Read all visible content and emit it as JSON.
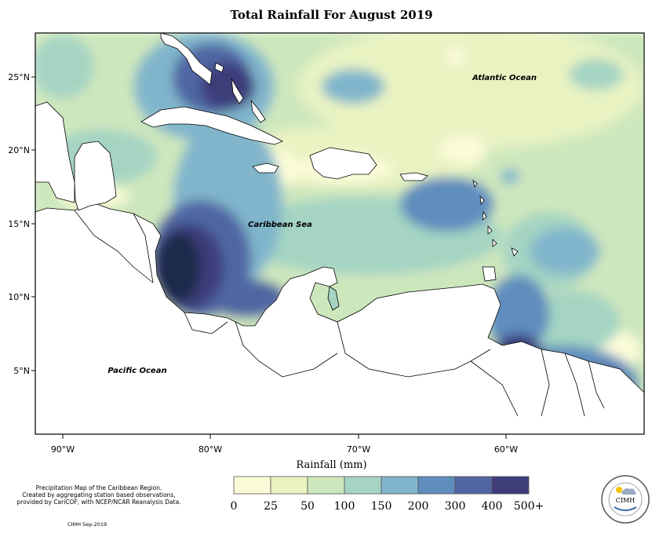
{
  "title": "Total Rainfall For August 2019",
  "map": {
    "lon_range": [
      -92,
      -51
    ],
    "lat_range": [
      1,
      28
    ],
    "longitude_ticks": [
      "90°W",
      "80°W",
      "70°W",
      "60°W"
    ],
    "latitude_ticks": [
      "25°N",
      "20°N",
      "15°N",
      "10°N",
      "5°N"
    ],
    "labels": {
      "atlantic": "Atlantic Ocean",
      "caribbean": "Caribbean Sea",
      "pacific": "Pacific Ocean"
    }
  },
  "legend": {
    "title": "Rainfall (mm)",
    "ticks": [
      "0",
      "25",
      "50",
      "100",
      "150",
      "200",
      "300",
      "400",
      "500+"
    ],
    "colors": [
      "#fbfbd8",
      "#e9f3c2",
      "#cde7bd",
      "#a5d4c3",
      "#80b5cc",
      "#5f8dbd",
      "#5066a3",
      "#3e3d7a",
      "#1f2a4c"
    ]
  },
  "footer": {
    "lines": [
      "Precipitation Map of the Caribbean Region.",
      "Created by aggregating station based observations,",
      "provided by CariCOF, with NCEP/NCAR Reanalysis Data."
    ],
    "stamp": "CIMH Sep-2019"
  },
  "logo": {
    "text": "CIMH"
  }
}
